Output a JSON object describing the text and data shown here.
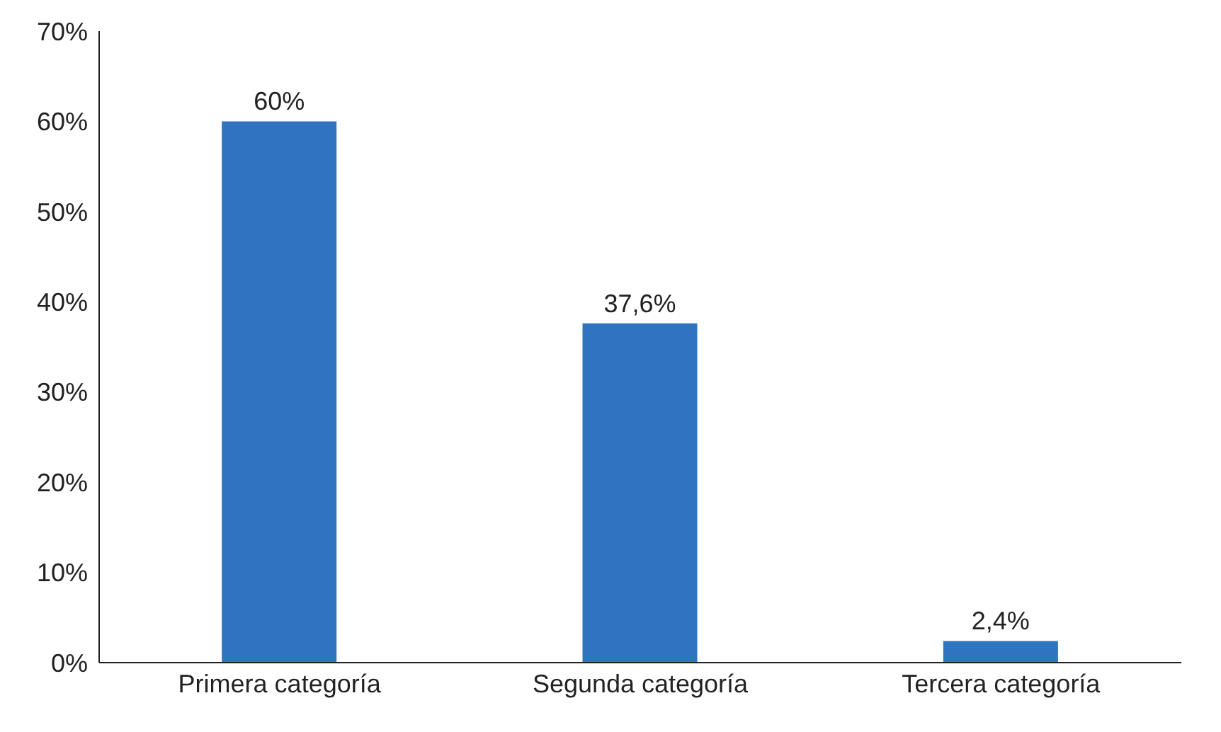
{
  "chart_data": {
    "type": "bar",
    "categories": [
      "Primera categoría",
      "Segunda categoría",
      "Tercera categoría"
    ],
    "values": [
      60,
      37.6,
      2.4
    ],
    "color": "#2e74bf",
    "value_labels": [
      "60%",
      "37,6%",
      "2,4%"
    ],
    "ylim": [
      0,
      70
    ],
    "yticks": [
      {
        "value": 0,
        "label": "0%"
      },
      {
        "value": 10,
        "label": "10%"
      },
      {
        "value": 20,
        "label": "20%"
      },
      {
        "value": 30,
        "label": "30%"
      },
      {
        "value": 40,
        "label": "40%"
      },
      {
        "value": 50,
        "label": "50%"
      },
      {
        "value": 60,
        "label": "60%"
      },
      {
        "value": 70,
        "label": "70%"
      }
    ],
    "grid": false,
    "legend": false
  }
}
